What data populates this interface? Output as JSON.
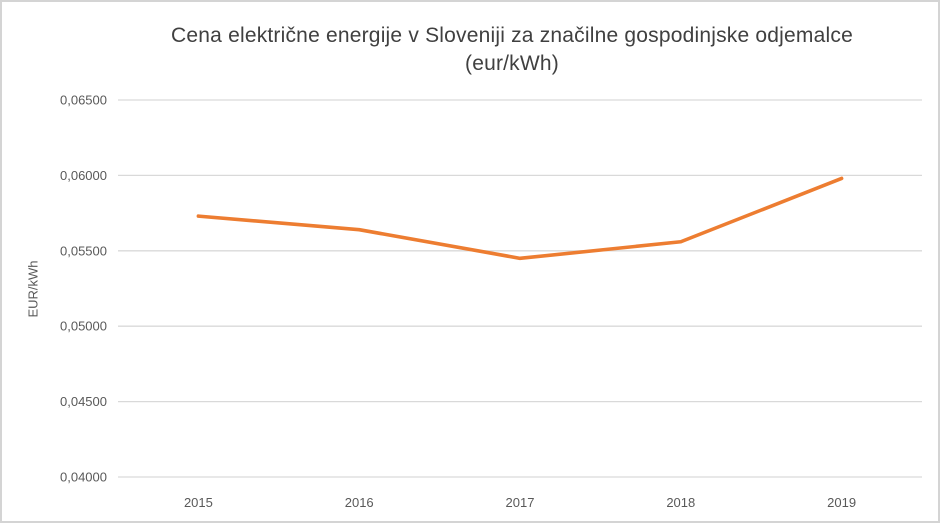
{
  "page": {
    "background": "#ffffff",
    "frame_border_color": "#d4d4d4"
  },
  "title_lines": [
    "Cena električne energije v Sloveniji za značilne gospodinjske odjemalce",
    "(eur/kWh)"
  ],
  "chart_data": {
    "type": "line",
    "title": "Cena električne energije v Sloveniji za značilne gospodinjske odjemalce (eur/kWh)",
    "categories": [
      "2015",
      "2016",
      "2017",
      "2018",
      "2019"
    ],
    "series": [
      {
        "name": "Cena električne energije (eur/kWh)",
        "values": [
          0.0573,
          0.0564,
          0.0545,
          0.0556,
          0.0598
        ]
      }
    ],
    "xlabel": "",
    "ylabel": "EUR/kWh",
    "ylim": [
      0.04,
      0.065
    ],
    "y_ticks": [
      {
        "value": 0.065,
        "label": "0,06500"
      },
      {
        "value": 0.06,
        "label": "0,06000"
      },
      {
        "value": 0.055,
        "label": "0,05500"
      },
      {
        "value": 0.05,
        "label": "0,05000"
      },
      {
        "value": 0.045,
        "label": "0,04500"
      },
      {
        "value": 0.04,
        "label": "0,04000"
      }
    ],
    "grid": true,
    "legend_position": "none",
    "line_color": "#ED7D31",
    "gridline_color": "#D9D9D9",
    "tick_color": "#595959",
    "title_color": "#404040"
  }
}
